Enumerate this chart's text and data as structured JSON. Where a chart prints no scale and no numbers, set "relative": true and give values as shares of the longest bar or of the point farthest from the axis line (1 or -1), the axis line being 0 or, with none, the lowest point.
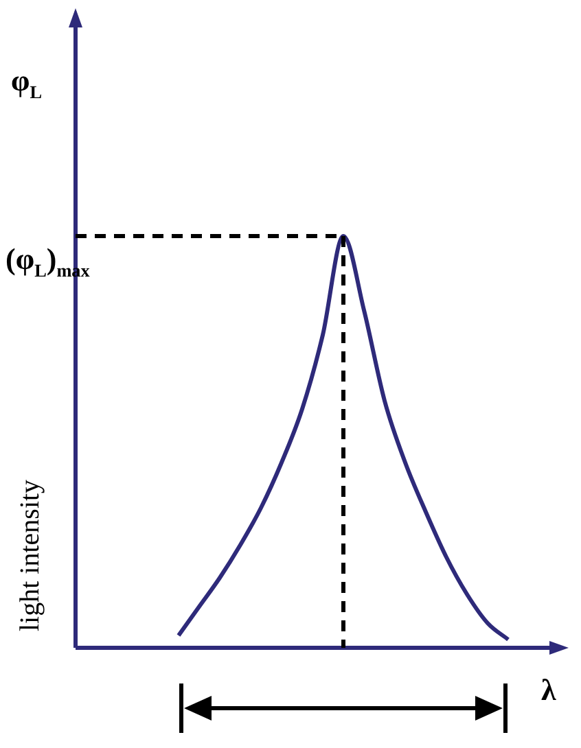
{
  "chart_data": {
    "type": "line",
    "relative": true,
    "xlabel": "λ",
    "ylabel": "light intensity",
    "annotations": [
      "φ$_{L}$"
    ],
    "categories": [
      null,
      null,
      null,
      null,
      null,
      null,
      null,
      null,
      null,
      null,
      null,
      null,
      null,
      null,
      null,
      null,
      null,
      null,
      null,
      null,
      null,
      null,
      null,
      null
    ],
    "series": [
      {
        "color": "#2e2a7a",
        "values": [
          null,
          null,
          null,
          null,
          null,
          0.03,
          0.1,
          0.17,
          0.25,
          0.34,
          0.45,
          0.58,
          0.76,
          1,
          0.82,
          0.6,
          0.45,
          0.33,
          0.22,
          0.13,
          0.06,
          0.02,
          null,
          null
        ]
      }
    ],
    "ref_lines": [
      {
        "axis": "y",
        "value": 1,
        "label": "(φ$_{L}$)$_{max}$",
        "line_style": "dashed",
        "color": "#000000"
      }
    ],
    "marker": "none",
    "line_style": "solid",
    "legend": false
  }
}
